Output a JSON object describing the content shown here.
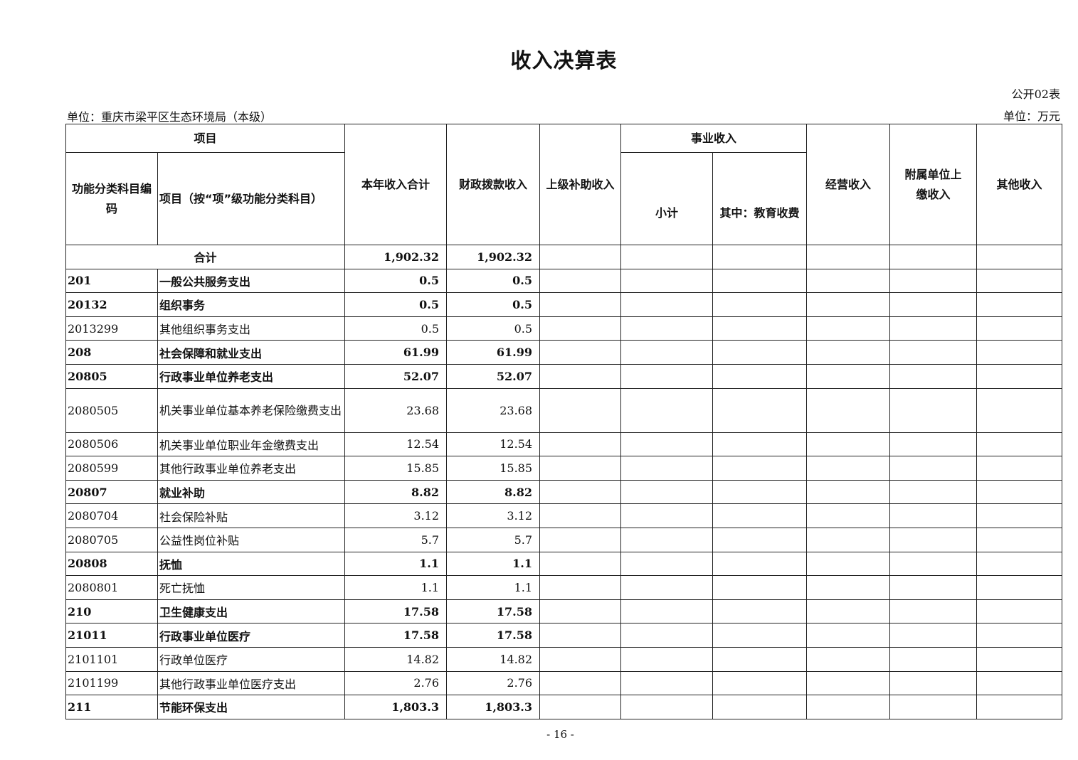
{
  "title": "收入决算表",
  "table_no": "公开02表",
  "unit_org": "单位：重庆市梁平区生态环境局（本级）",
  "unit_money": "单位：万元",
  "headers": {
    "item_group": "项目",
    "code": "功能分类科目编码",
    "name": "项目（按“项”级功能分类科目）",
    "total": "本年收入合计",
    "fiscal": "财政拨款收入",
    "superior": "上级补助收入",
    "business_group": "事业收入",
    "subtotal": "小计",
    "edu": "其中：教育收费",
    "operating": "经营收入",
    "affiliated": "附属单位上缴收入",
    "other": "其他收入"
  },
  "total_row": {
    "label": "合计",
    "total": "1,902.32",
    "fiscal": "1,902.32"
  },
  "rows": [
    {
      "code": "201",
      "name": "一般公共服务支出",
      "total": "0.5",
      "fiscal": "0.5",
      "bold": true
    },
    {
      "code": "20132",
      "name": "组织事务",
      "total": "0.5",
      "fiscal": "0.5",
      "bold": true
    },
    {
      "code": "2013299",
      "name": "其他组织事务支出",
      "total": "0.5",
      "fiscal": "0.5",
      "bold": false
    },
    {
      "code": "208",
      "name": "社会保障和就业支出",
      "total": "61.99",
      "fiscal": "61.99",
      "bold": true
    },
    {
      "code": "20805",
      "name": "行政事业单位养老支出",
      "total": "52.07",
      "fiscal": "52.07",
      "bold": true
    },
    {
      "code": "2080505",
      "name": "机关事业单位基本养老保险缴费支出",
      "total": "23.68",
      "fiscal": "23.68",
      "bold": false,
      "tall": true
    },
    {
      "code": "2080506",
      "name": "机关事业单位职业年金缴费支出",
      "total": "12.54",
      "fiscal": "12.54",
      "bold": false
    },
    {
      "code": "2080599",
      "name": "其他行政事业单位养老支出",
      "total": "15.85",
      "fiscal": "15.85",
      "bold": false
    },
    {
      "code": "20807",
      "name": "就业补助",
      "total": "8.82",
      "fiscal": "8.82",
      "bold": true
    },
    {
      "code": "2080704",
      "name": "社会保险补贴",
      "total": "3.12",
      "fiscal": "3.12",
      "bold": false
    },
    {
      "code": "2080705",
      "name": "公益性岗位补贴",
      "total": "5.7",
      "fiscal": "5.7",
      "bold": false
    },
    {
      "code": "20808",
      "name": "抚恤",
      "total": "1.1",
      "fiscal": "1.1",
      "bold": true
    },
    {
      "code": "2080801",
      "name": "死亡抚恤",
      "total": "1.1",
      "fiscal": "1.1",
      "bold": false
    },
    {
      "code": "210",
      "name": "卫生健康支出",
      "total": "17.58",
      "fiscal": "17.58",
      "bold": true
    },
    {
      "code": "21011",
      "name": "行政事业单位医疗",
      "total": "17.58",
      "fiscal": "17.58",
      "bold": true
    },
    {
      "code": "2101101",
      "name": "行政单位医疗",
      "total": "14.82",
      "fiscal": "14.82",
      "bold": false
    },
    {
      "code": "2101199",
      "name": "其他行政事业单位医疗支出",
      "total": "2.76",
      "fiscal": "2.76",
      "bold": false
    },
    {
      "code": "211",
      "name": "节能环保支出",
      "total": "1,803.3",
      "fiscal": "1,803.3",
      "bold": true
    }
  ],
  "page_number": "- 16 -"
}
